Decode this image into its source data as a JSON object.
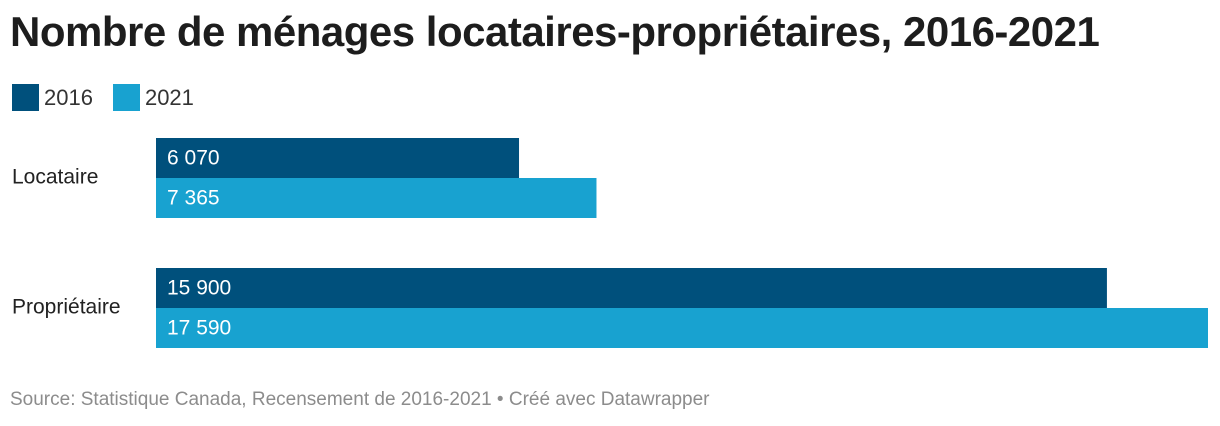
{
  "title": "Nombre de ménages locataires-propriétaires, 2016-2021",
  "source": "Source: Statistique Canada, Recensement de 2016-2021 • Créé avec Datawrapper",
  "colors": {
    "series_2016": "#00507c",
    "series_2021": "#18a2d0",
    "label_text": "#ffffff"
  },
  "chart_data": {
    "type": "bar",
    "orientation": "horizontal",
    "categories": [
      "Locataire",
      "Propriétaire"
    ],
    "series": [
      {
        "name": "2016",
        "values": [
          6070,
          15900
        ],
        "labels": [
          "6 070",
          "15 900"
        ]
      },
      {
        "name": "2021",
        "values": [
          7365,
          17590
        ],
        "labels": [
          "7 365",
          "17 590"
        ]
      }
    ],
    "xlim": [
      0,
      17590
    ],
    "grid": false,
    "legend_position": "top-left"
  }
}
